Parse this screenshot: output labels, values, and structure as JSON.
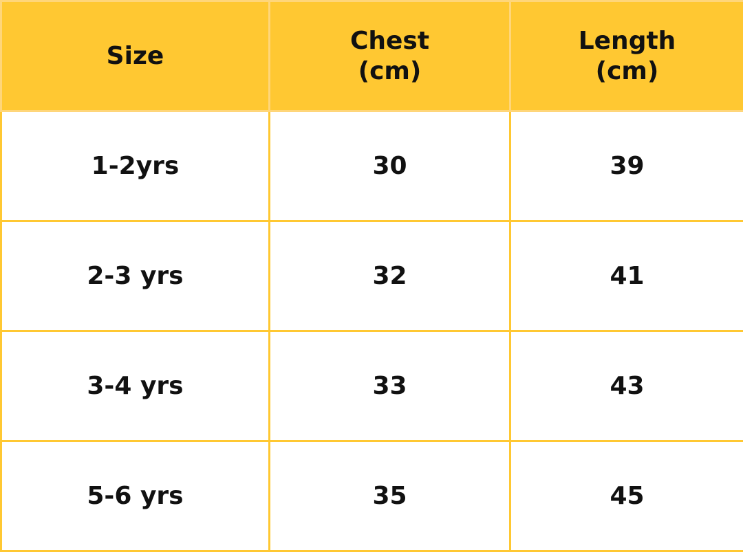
{
  "colors": {
    "header_bg": "#FFC832",
    "border": "#FFC832",
    "text": "#111111"
  },
  "table": {
    "headers": [
      "Size",
      "Chest\n(cm)",
      "Length\n(cm)"
    ],
    "rows": [
      [
        "1-2yrs",
        "30",
        "39"
      ],
      [
        "2-3 yrs",
        "32",
        "41"
      ],
      [
        "3-4 yrs",
        "33",
        "43"
      ],
      [
        "5-6 yrs",
        "35",
        "45"
      ]
    ]
  }
}
